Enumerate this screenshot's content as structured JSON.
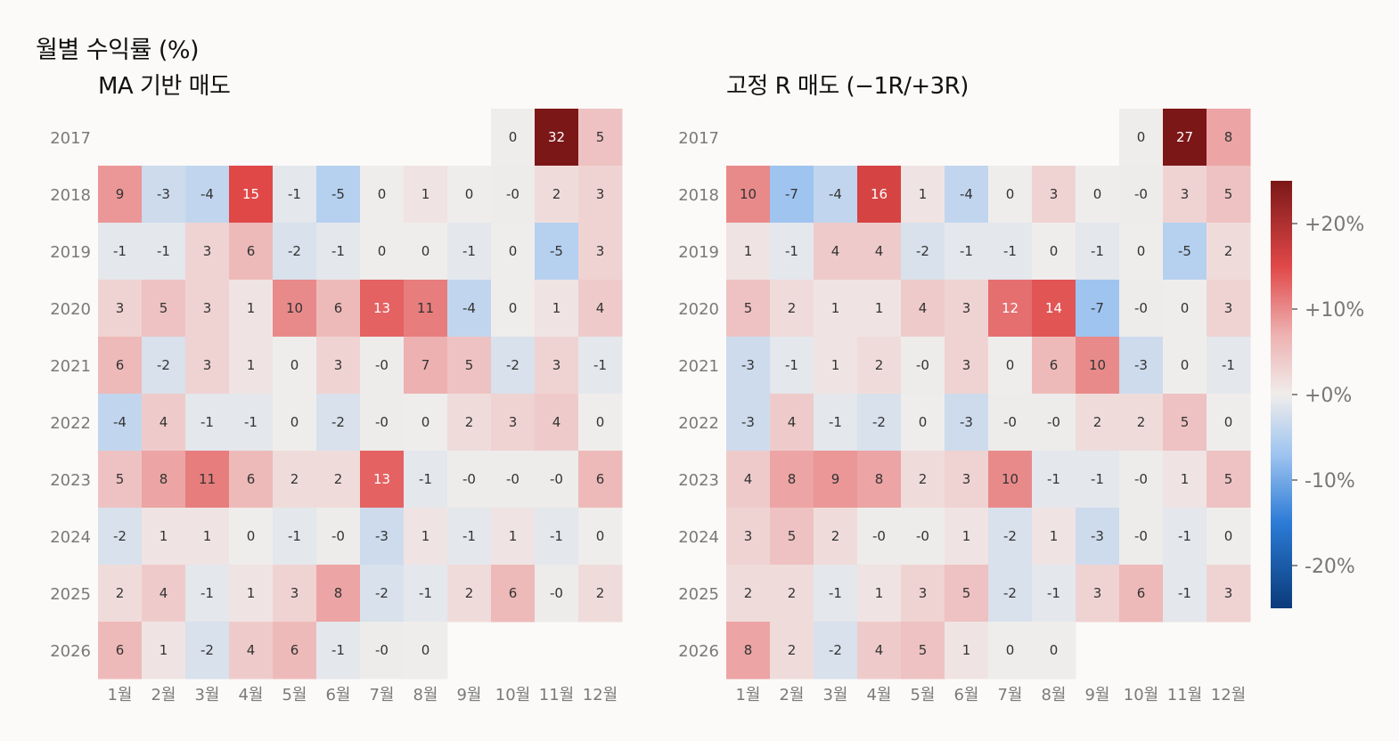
{
  "figure": {
    "title": "월별 수익률 (%)"
  },
  "chart_data": [
    {
      "type": "heatmap",
      "title": "MA 기반 매도",
      "x_tick_labels": [
        "1월",
        "2월",
        "3월",
        "4월",
        "5월",
        "6월",
        "7월",
        "8월",
        "9월",
        "10월",
        "11월",
        "12월"
      ],
      "y_tick_labels": [
        "2017",
        "2018",
        "2019",
        "2020",
        "2021",
        "2022",
        "2023",
        "2024",
        "2025",
        "2026"
      ],
      "value_range": [
        -25,
        25
      ],
      "values": [
        [
          null,
          null,
          null,
          null,
          null,
          null,
          null,
          null,
          null,
          0,
          32,
          5
        ],
        [
          9,
          -3,
          -4,
          15,
          -1,
          -5,
          0,
          1,
          0,
          -0.2,
          2,
          3
        ],
        [
          -1,
          -1,
          3,
          6,
          -2,
          -1,
          0,
          0,
          -1,
          0,
          -5,
          3
        ],
        [
          3,
          5,
          3,
          1,
          10,
          6,
          13,
          11,
          -4,
          0,
          1,
          4
        ],
        [
          6,
          -2,
          3,
          1,
          0,
          3,
          -0.2,
          7,
          5,
          -2,
          3,
          -1
        ],
        [
          -4,
          4,
          -1,
          -1,
          0,
          -2,
          -0.2,
          0,
          2,
          3,
          4,
          0
        ],
        [
          5,
          8,
          11,
          6,
          2,
          2,
          13,
          -1,
          -0.2,
          -0.2,
          -0.2,
          6
        ],
        [
          -2,
          1,
          1,
          0,
          -1,
          -0.2,
          -3,
          1,
          -1,
          1,
          -1,
          0
        ],
        [
          2,
          4,
          -1,
          1,
          3,
          8,
          -2,
          -1,
          2,
          6,
          -0.2,
          2
        ],
        [
          6,
          1,
          -2,
          4,
          6,
          -1,
          -0.2,
          0,
          null,
          null,
          null,
          null
        ]
      ],
      "cell_labels": [
        [
          "",
          "",
          "",
          "",
          "",
          "",
          "",
          "",
          "",
          "0",
          "32",
          "5"
        ],
        [
          "9",
          "-3",
          "-4",
          "15",
          "-1",
          "-5",
          "0",
          "1",
          "0",
          "-0",
          "2",
          "3"
        ],
        [
          "-1",
          "-1",
          "3",
          "6",
          "-2",
          "-1",
          "0",
          "0",
          "-1",
          "0",
          "-5",
          "3"
        ],
        [
          "3",
          "5",
          "3",
          "1",
          "10",
          "6",
          "13",
          "11",
          "-4",
          "0",
          "1",
          "4"
        ],
        [
          "6",
          "-2",
          "3",
          "1",
          "0",
          "3",
          "-0",
          "7",
          "5",
          "-2",
          "3",
          "-1"
        ],
        [
          "-4",
          "4",
          "-1",
          "-1",
          "0",
          "-2",
          "-0",
          "0",
          "2",
          "3",
          "4",
          "0"
        ],
        [
          "5",
          "8",
          "11",
          "6",
          "2",
          "2",
          "13",
          "-1",
          "-0",
          "-0",
          "-0",
          "6"
        ],
        [
          "-2",
          "1",
          "1",
          "0",
          "-1",
          "-0",
          "-3",
          "1",
          "-1",
          "1",
          "-1",
          "0"
        ],
        [
          "2",
          "4",
          "-1",
          "1",
          "3",
          "8",
          "-2",
          "-1",
          "2",
          "6",
          "-0",
          "2"
        ],
        [
          "6",
          "1",
          "-2",
          "4",
          "6",
          "-1",
          "-0",
          "0",
          "",
          "",
          "",
          ""
        ]
      ]
    },
    {
      "type": "heatmap",
      "title": "고정 R 매도 (−1R/+3R)",
      "x_tick_labels": [
        "1월",
        "2월",
        "3월",
        "4월",
        "5월",
        "6월",
        "7월",
        "8월",
        "9월",
        "10월",
        "11월",
        "12월"
      ],
      "y_tick_labels": [
        "2017",
        "2018",
        "2019",
        "2020",
        "2021",
        "2022",
        "2023",
        "2024",
        "2025",
        "2026"
      ],
      "value_range": [
        -25,
        25
      ],
      "values": [
        [
          null,
          null,
          null,
          null,
          null,
          null,
          null,
          null,
          null,
          0,
          27,
          8
        ],
        [
          10,
          -7,
          -4,
          16,
          1,
          -4,
          0,
          3,
          0,
          -0.2,
          3,
          5
        ],
        [
          1,
          -1,
          4,
          4,
          -2,
          -1,
          -1,
          0,
          -1,
          0,
          -5,
          2
        ],
        [
          5,
          2,
          1,
          1,
          4,
          3,
          12,
          14,
          -7,
          -0.2,
          0,
          3
        ],
        [
          -3,
          -1,
          1,
          2,
          -0.2,
          3,
          0,
          6,
          10,
          -3,
          0,
          -1
        ],
        [
          -3,
          4,
          -1,
          -2,
          0,
          -3,
          -0.2,
          -0.2,
          2,
          2,
          5,
          0
        ],
        [
          4,
          8,
          9,
          8,
          2,
          3,
          10,
          -1,
          -1,
          -0.2,
          1,
          5
        ],
        [
          3,
          5,
          2,
          -0.2,
          -0.2,
          1,
          -2,
          1,
          -3,
          -0.2,
          -1,
          0
        ],
        [
          2,
          2,
          -1,
          1,
          3,
          5,
          -2,
          -1,
          3,
          6,
          -1,
          3
        ],
        [
          8,
          2,
          -2,
          4,
          5,
          1,
          0,
          0,
          null,
          null,
          null,
          null
        ]
      ],
      "cell_labels": [
        [
          "",
          "",
          "",
          "",
          "",
          "",
          "",
          "",
          "",
          "0",
          "27",
          "8"
        ],
        [
          "10",
          "-7",
          "-4",
          "16",
          "1",
          "-4",
          "0",
          "3",
          "0",
          "-0",
          "3",
          "5"
        ],
        [
          "1",
          "-1",
          "4",
          "4",
          "-2",
          "-1",
          "-1",
          "0",
          "-1",
          "0",
          "-5",
          "2"
        ],
        [
          "5",
          "2",
          "1",
          "1",
          "4",
          "3",
          "12",
          "14",
          "-7",
          "-0",
          "0",
          "3"
        ],
        [
          "-3",
          "-1",
          "1",
          "2",
          "-0",
          "3",
          "0",
          "6",
          "10",
          "-3",
          "0",
          "-1"
        ],
        [
          "-3",
          "4",
          "-1",
          "-2",
          "0",
          "-3",
          "-0",
          "-0",
          "2",
          "2",
          "5",
          "0"
        ],
        [
          "4",
          "8",
          "9",
          "8",
          "2",
          "3",
          "10",
          "-1",
          "-1",
          "-0",
          "1",
          "5"
        ],
        [
          "3",
          "5",
          "2",
          "-0",
          "-0",
          "1",
          "-2",
          "1",
          "-3",
          "-0",
          "-1",
          "0"
        ],
        [
          "2",
          "2",
          "-1",
          "1",
          "3",
          "5",
          "-2",
          "-1",
          "3",
          "6",
          "-1",
          "3"
        ],
        [
          "8",
          "2",
          "-2",
          "4",
          "5",
          "1",
          "0",
          "0",
          "",
          "",
          "",
          ""
        ]
      ]
    }
  ],
  "colorbar": {
    "range": [
      -25,
      25
    ],
    "ticks": [
      {
        "value": 20,
        "label": "+20%"
      },
      {
        "value": 10,
        "label": "+10%"
      },
      {
        "value": 0,
        "label": "+0%"
      },
      {
        "value": -10,
        "label": "-10%"
      },
      {
        "value": -20,
        "label": "-20%"
      }
    ],
    "colors": {
      "neg_max": "#0b3b7a",
      "neg_mid": "#2b7bd6",
      "neg_light": "#9fc4f0",
      "neutral": "#efedeb",
      "pos_light": "#eeb1b1",
      "pos_mid": "#e04848",
      "pos_max": "#7c1717"
    }
  }
}
